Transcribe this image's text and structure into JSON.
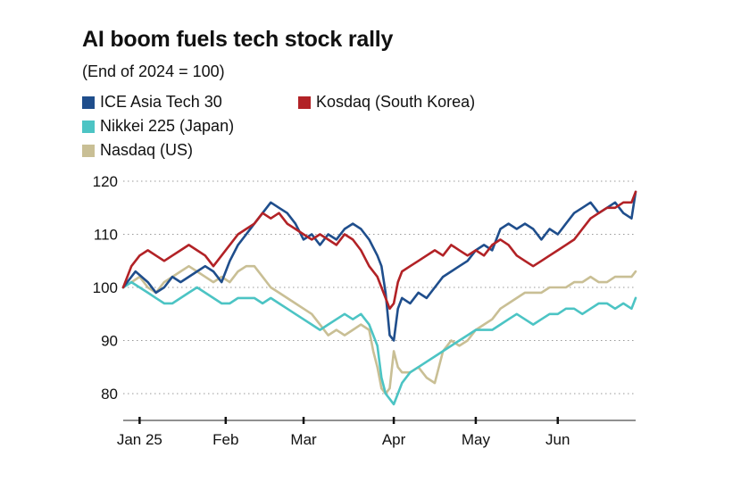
{
  "chart_data": {
    "type": "line",
    "title": "AI boom fuels tech stock rally",
    "subtitle": "(End of 2024 = 100)",
    "xlabel": "",
    "ylabel": "",
    "ylim": [
      76,
      122
    ],
    "xlim": [
      0,
      125
    ],
    "y_ticks": [
      80,
      90,
      100,
      110,
      120
    ],
    "y_tick_labels": [
      "80",
      "90",
      "100",
      "110",
      "120"
    ],
    "month_ticks": [
      {
        "x": 4,
        "label": "Jan 25"
      },
      {
        "x": 25,
        "label": "Feb"
      },
      {
        "x": 44,
        "label": "Mar"
      },
      {
        "x": 66,
        "label": "Apr"
      },
      {
        "x": 86,
        "label": "May"
      },
      {
        "x": 106,
        "label": "Jun"
      }
    ],
    "grid": true,
    "legend_position": "top-left",
    "series": [
      {
        "name": "ICE Asia Tech 30",
        "color": "#1f4e8c",
        "x": [
          0,
          3,
          6,
          8,
          10,
          12,
          14,
          16,
          18,
          20,
          22,
          24,
          26,
          28,
          30,
          32,
          34,
          36,
          38,
          40,
          42,
          44,
          46,
          48,
          50,
          52,
          54,
          56,
          58,
          60,
          62,
          63,
          64,
          65,
          66,
          67,
          68,
          70,
          72,
          74,
          76,
          78,
          80,
          82,
          84,
          86,
          88,
          90,
          92,
          94,
          96,
          98,
          100,
          102,
          104,
          106,
          108,
          110,
          112,
          114,
          116,
          118,
          120,
          122,
          124,
          125
        ],
        "y": [
          100,
          103,
          101,
          99,
          100,
          102,
          101,
          102,
          103,
          104,
          103,
          101,
          105,
          108,
          110,
          112,
          114,
          116,
          115,
          114,
          112,
          109,
          110,
          108,
          110,
          109,
          111,
          112,
          111,
          109,
          106,
          104,
          99,
          91,
          90,
          96,
          98,
          97,
          99,
          98,
          100,
          102,
          103,
          104,
          105,
          107,
          108,
          107,
          111,
          112,
          111,
          112,
          111,
          109,
          111,
          110,
          112,
          114,
          115,
          116,
          114,
          115,
          116,
          114,
          113,
          118
        ]
      },
      {
        "name": "Kosdaq (South Korea)",
        "color": "#b22226",
        "x": [
          0,
          2,
          4,
          6,
          8,
          10,
          12,
          14,
          16,
          18,
          20,
          22,
          24,
          26,
          28,
          30,
          32,
          34,
          36,
          38,
          40,
          42,
          44,
          46,
          48,
          50,
          52,
          54,
          56,
          58,
          60,
          62,
          63,
          64,
          65,
          66,
          67,
          68,
          70,
          72,
          74,
          76,
          78,
          80,
          82,
          84,
          86,
          88,
          90,
          92,
          94,
          96,
          98,
          100,
          102,
          104,
          106,
          108,
          110,
          112,
          114,
          116,
          118,
          120,
          122,
          124,
          125
        ],
        "y": [
          100,
          104,
          106,
          107,
          106,
          105,
          106,
          107,
          108,
          107,
          106,
          104,
          106,
          108,
          110,
          111,
          112,
          114,
          113,
          114,
          112,
          111,
          110,
          109,
          110,
          109,
          108,
          110,
          109,
          107,
          104,
          102,
          100,
          98,
          96,
          97,
          101,
          103,
          104,
          105,
          106,
          107,
          106,
          108,
          107,
          106,
          107,
          106,
          108,
          109,
          108,
          106,
          105,
          104,
          105,
          106,
          107,
          108,
          109,
          111,
          113,
          114,
          115,
          115,
          116,
          116,
          118
        ]
      },
      {
        "name": "Nikkei 225 (Japan)",
        "color": "#4cc4c4",
        "x": [
          0,
          2,
          4,
          6,
          8,
          10,
          12,
          14,
          16,
          18,
          20,
          22,
          24,
          26,
          28,
          30,
          32,
          34,
          36,
          38,
          40,
          42,
          44,
          46,
          48,
          50,
          52,
          54,
          56,
          58,
          60,
          62,
          63,
          64,
          65,
          66,
          67,
          68,
          70,
          72,
          74,
          76,
          78,
          80,
          82,
          84,
          86,
          88,
          90,
          92,
          94,
          96,
          98,
          100,
          102,
          104,
          106,
          108,
          110,
          112,
          114,
          116,
          118,
          120,
          122,
          124,
          125
        ],
        "y": [
          100,
          101,
          100,
          99,
          98,
          97,
          97,
          98,
          99,
          100,
          99,
          98,
          97,
          97,
          98,
          98,
          98,
          97,
          98,
          97,
          96,
          95,
          94,
          93,
          92,
          93,
          94,
          95,
          94,
          95,
          93,
          89,
          83,
          80,
          79,
          78,
          80,
          82,
          84,
          85,
          86,
          87,
          88,
          89,
          90,
          91,
          92,
          92,
          92,
          93,
          94,
          95,
          94,
          93,
          94,
          95,
          95,
          96,
          96,
          95,
          96,
          97,
          97,
          96,
          97,
          96,
          98
        ]
      },
      {
        "name": "Nasdaq (US)",
        "color": "#c9bf95",
        "x": [
          0,
          2,
          4,
          6,
          8,
          10,
          12,
          14,
          16,
          18,
          20,
          22,
          24,
          26,
          28,
          30,
          32,
          34,
          36,
          38,
          40,
          42,
          44,
          46,
          48,
          50,
          52,
          54,
          56,
          58,
          60,
          61,
          62,
          63,
          64,
          65,
          66,
          67,
          68,
          70,
          72,
          74,
          76,
          78,
          80,
          82,
          84,
          86,
          88,
          90,
          92,
          94,
          96,
          98,
          100,
          102,
          104,
          106,
          108,
          110,
          112,
          114,
          116,
          118,
          120,
          122,
          124,
          125
        ],
        "y": [
          100,
          101,
          102,
          100,
          99,
          101,
          102,
          103,
          104,
          103,
          102,
          101,
          102,
          101,
          103,
          104,
          104,
          102,
          100,
          99,
          98,
          97,
          96,
          95,
          93,
          91,
          92,
          91,
          92,
          93,
          92,
          88,
          85,
          81,
          80,
          81,
          88,
          85,
          84,
          84,
          85,
          83,
          82,
          88,
          90,
          89,
          90,
          92,
          93,
          94,
          96,
          97,
          98,
          99,
          99,
          99,
          100,
          100,
          100,
          101,
          101,
          102,
          101,
          101,
          102,
          102,
          102,
          103
        ]
      }
    ]
  }
}
